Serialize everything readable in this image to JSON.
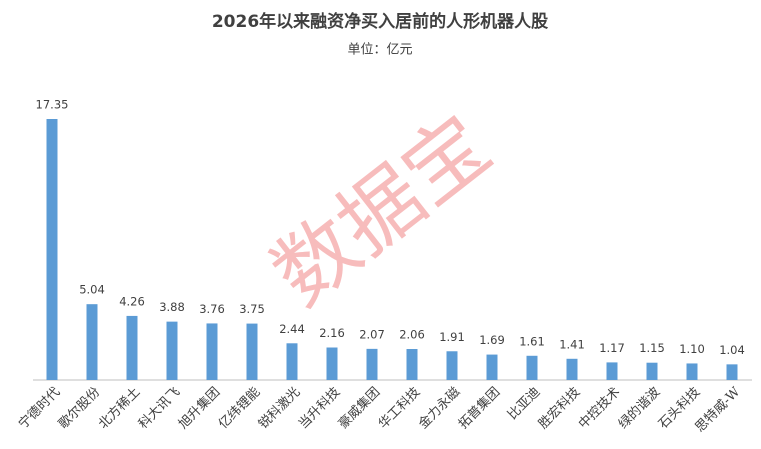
{
  "chart_data": {
    "type": "bar",
    "title": "2026年以来融资净买入居前的人形机器人股",
    "subtitle": "单位：亿元",
    "watermark": "数据宝",
    "categories": [
      "宁德时代",
      "歌尔股份",
      "北方稀土",
      "科大讯飞",
      "旭升集团",
      "亿纬锂能",
      "锐科激光",
      "当升科技",
      "豪威集团",
      "华工科技",
      "金力永磁",
      "拓普集团",
      "比亚迪",
      "胜宏科技",
      "中控技术",
      "绿的谐波",
      "石头科技",
      "思特威-W"
    ],
    "values": [
      17.35,
      5.04,
      4.26,
      3.88,
      3.76,
      3.75,
      2.44,
      2.16,
      2.07,
      2.06,
      1.91,
      1.69,
      1.61,
      1.41,
      1.17,
      1.15,
      1.1,
      1.04
    ],
    "value_labels": [
      "17.35",
      "5.04",
      "4.26",
      "3.88",
      "3.76",
      "3.75",
      "2.44",
      "2.16",
      "2.07",
      "2.06",
      "1.91",
      "1.69",
      "1.61",
      "1.41",
      "1.17",
      "1.15",
      "1.10",
      "1.04"
    ],
    "color": "#5b9bd5"
  }
}
